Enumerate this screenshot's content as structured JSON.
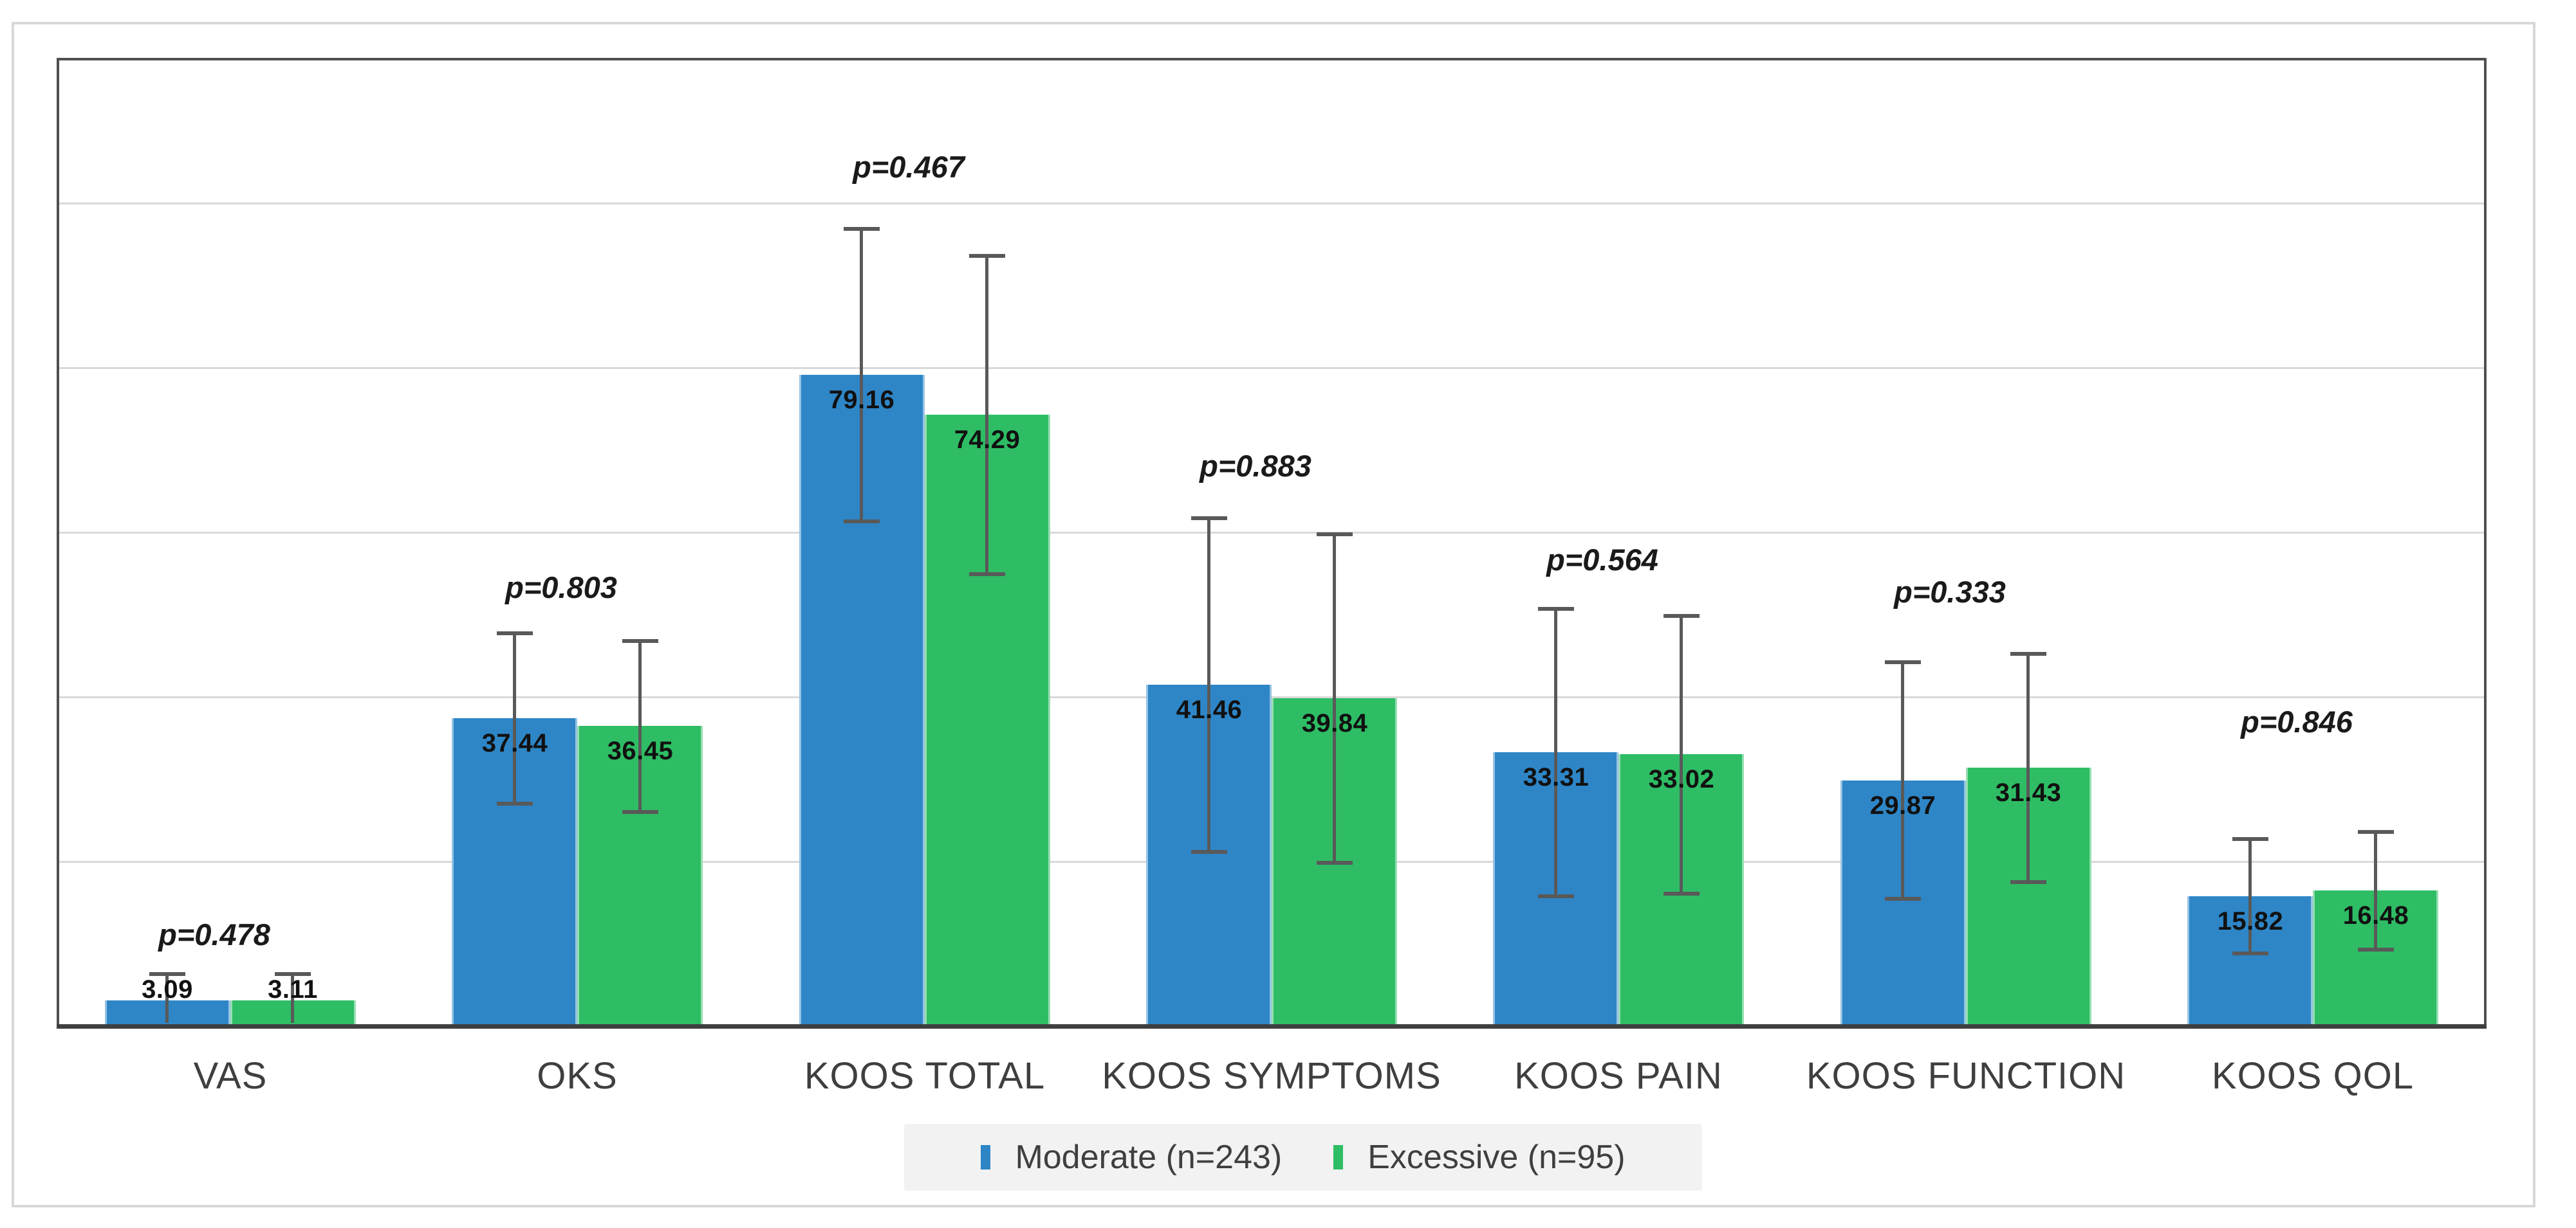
{
  "chart_data": {
    "type": "bar",
    "categories": [
      "VAS",
      "OKS",
      "KOOS TOTAL",
      "KOOS SYMPTOMS",
      "KOOS PAIN",
      "KOOS FUNCTION",
      "KOOS QOL"
    ],
    "series": [
      {
        "name": "Moderate (n=243)",
        "color": "#2E86C7",
        "values": [
          3.09,
          37.44,
          79.16,
          41.46,
          33.31,
          29.87,
          15.82
        ],
        "errors": [
          3.3,
          10.4,
          17.8,
          20.3,
          17.5,
          14.4,
          7.0
        ]
      },
      {
        "name": "Excessive (n=95)",
        "color": "#2EBD64",
        "values": [
          3.11,
          36.45,
          74.29,
          39.84,
          33.02,
          31.43,
          16.48
        ],
        "errors": [
          3.3,
          10.4,
          19.4,
          20.0,
          16.9,
          13.9,
          7.2
        ]
      }
    ],
    "p_values": [
      "p=0.478",
      "p=0.803",
      "p=0.467",
      "p=0.883",
      "p=0.564",
      "p=0.333",
      "p=0.846"
    ],
    "value_label_decimals": 2,
    "ylim": [
      0,
      117.7
    ],
    "gridline_step": 20,
    "grid_on": true,
    "y_axis_tick_labels_visible": false,
    "legend_position": "bottom-center"
  },
  "colors": {
    "gridline": "#D9D9D9",
    "axis_line": "#3F3F3F",
    "plot_border": "#4F4F4F",
    "figure_border": "#D8D8D8",
    "error_bar": "#595959",
    "value_label_text": "#111111",
    "p_value_text": "#1A1A1A",
    "category_label_text": "#3F3F3F",
    "legend_text": "#3F3F3F",
    "legend_background": "#F2F2F2"
  }
}
